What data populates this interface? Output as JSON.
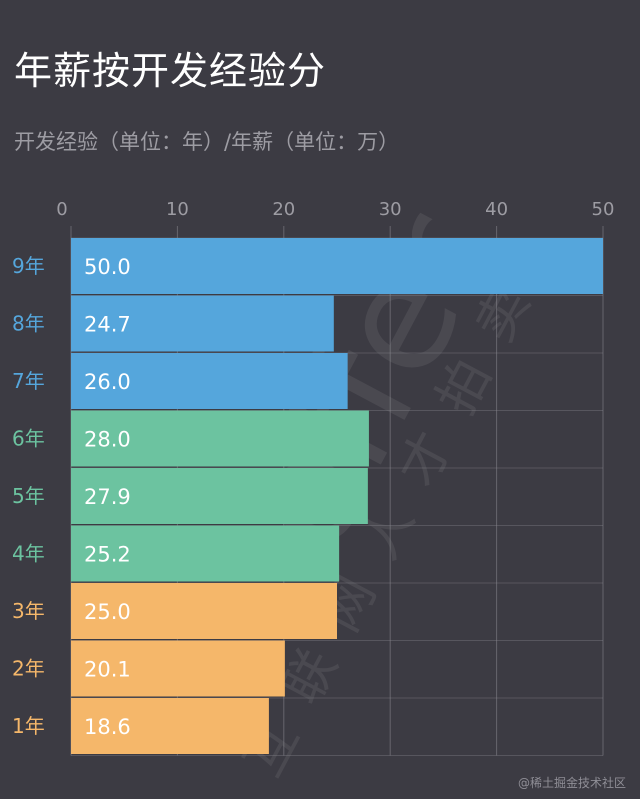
{
  "header": {
    "title": "年薪按开发经验分",
    "subtitle": "开发经验（单位：年）/年薪（单位：万）"
  },
  "watermark": {
    "brand": "offer",
    "slogan": "互联网人才拍卖",
    "credit": "@稀土掘金技术社区"
  },
  "colors": {
    "background": "#3c3b43",
    "blue": "#55a6dc",
    "green": "#6cc3a0",
    "orange": "#f5b76a",
    "grid": "#8a8990"
  },
  "chart_data": {
    "type": "bar",
    "orientation": "horizontal",
    "title": "年薪按开发经验分",
    "subtitle": "开发经验（单位：年）/年薪（单位：万）",
    "xlim": [
      0,
      50
    ],
    "xticks": [
      0,
      10,
      20,
      30,
      40,
      50
    ],
    "categories": [
      "9年",
      "8年",
      "7年",
      "6年",
      "5年",
      "4年",
      "3年",
      "2年",
      "1年"
    ],
    "values": [
      50.0,
      24.7,
      26.0,
      28.0,
      27.9,
      25.2,
      25.0,
      20.1,
      18.6
    ],
    "value_labels": [
      "50.0",
      "24.7",
      "26.0",
      "28.0",
      "27.9",
      "25.2",
      "25.0",
      "20.1",
      "18.6"
    ],
    "bar_colors": [
      "#55a6dc",
      "#55a6dc",
      "#55a6dc",
      "#6cc3a0",
      "#6cc3a0",
      "#6cc3a0",
      "#f5b76a",
      "#f5b76a",
      "#f5b76a"
    ],
    "grid": true
  }
}
